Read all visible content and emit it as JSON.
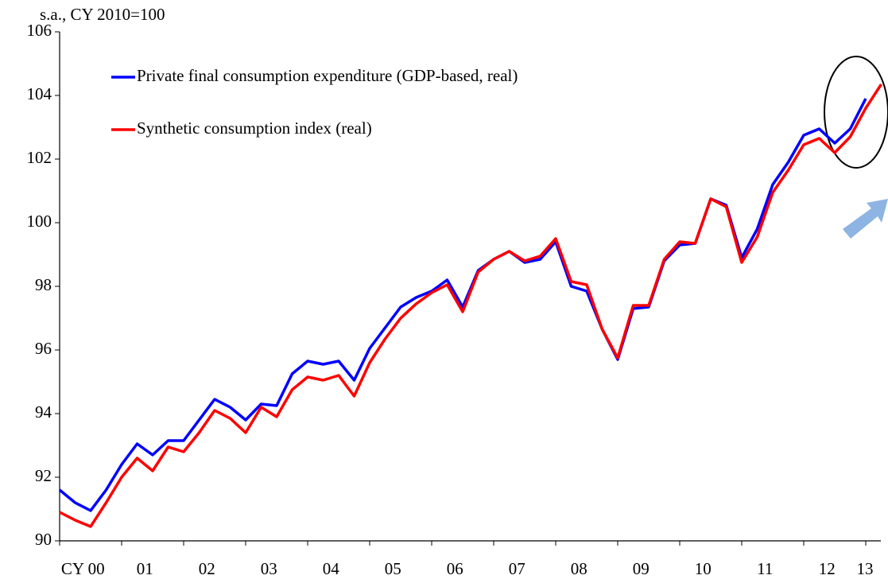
{
  "chart_data": {
    "type": "line",
    "ylabel": "s.a., CY 2010=100",
    "categories": [
      "CY 00",
      null,
      null,
      null,
      "01",
      null,
      null,
      null,
      "02",
      null,
      null,
      null,
      "03",
      null,
      null,
      null,
      "04",
      null,
      null,
      null,
      "05",
      null,
      null,
      null,
      "06",
      null,
      null,
      null,
      "07",
      null,
      null,
      null,
      "08",
      null,
      null,
      null,
      "09",
      null,
      null,
      null,
      "10",
      null,
      null,
      null,
      "11",
      null,
      null,
      null,
      "12",
      null,
      null,
      null,
      "13",
      null
    ],
    "series": [
      {
        "name": "Private final consumption expenditure (GDP-based, real)",
        "color": "#0000ff",
        "values": [
          91.6,
          91.2,
          90.95,
          91.6,
          92.4,
          93.05,
          92.7,
          93.15,
          93.15,
          93.8,
          94.45,
          94.2,
          93.8,
          94.3,
          94.25,
          95.25,
          95.65,
          95.55,
          95.65,
          95.05,
          96.05,
          96.7,
          97.35,
          97.65,
          97.85,
          98.2,
          97.35,
          98.5,
          98.85,
          99.1,
          98.75,
          98.85,
          99.4,
          98.0,
          97.85,
          96.65,
          95.7,
          97.3,
          97.35,
          98.8,
          99.3,
          99.35,
          100.75,
          100.55,
          98.9,
          99.8,
          101.2,
          101.9,
          102.75,
          102.95,
          102.5,
          102.95,
          103.9,
          null
        ]
      },
      {
        "name": "Synthetic consumption index (real)",
        "color": "#ff0000",
        "values": [
          90.9,
          90.65,
          90.45,
          91.2,
          92.0,
          92.6,
          92.2,
          92.95,
          92.8,
          93.4,
          94.1,
          93.85,
          93.4,
          94.2,
          93.9,
          94.75,
          95.15,
          95.05,
          95.2,
          94.55,
          95.6,
          96.35,
          97.0,
          97.45,
          97.8,
          98.05,
          97.2,
          98.45,
          98.85,
          99.1,
          98.8,
          98.95,
          99.5,
          98.15,
          98.05,
          96.65,
          95.75,
          97.4,
          97.4,
          98.85,
          99.4,
          99.35,
          100.75,
          100.5,
          98.75,
          99.55,
          100.95,
          101.65,
          102.45,
          102.65,
          102.2,
          102.7,
          103.6,
          104.35
        ]
      }
    ],
    "ylim": [
      90,
      106
    ],
    "yticks": [
      90,
      92,
      94,
      96,
      98,
      100,
      102,
      104,
      106
    ],
    "grid": false,
    "legend": "upper left"
  }
}
